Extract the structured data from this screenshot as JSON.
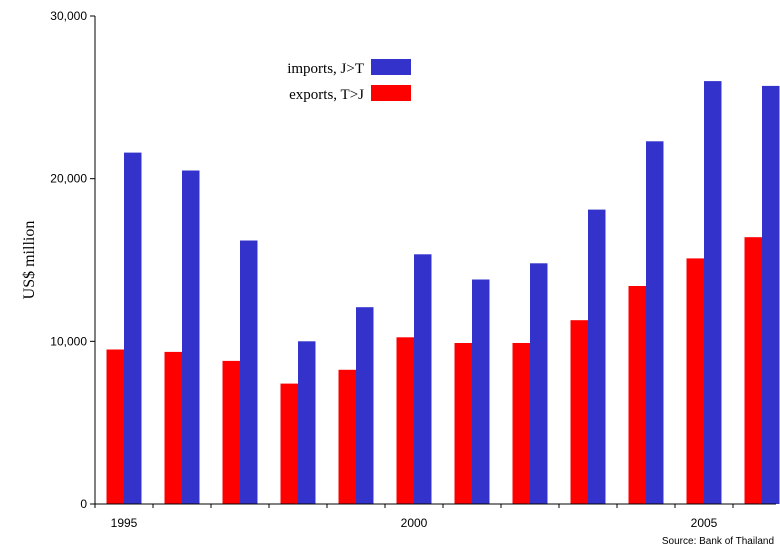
{
  "chart_data": {
    "type": "bar",
    "categories": [
      "1995",
      "1996",
      "1997",
      "1998",
      "1999",
      "2000",
      "2001",
      "2002",
      "2003",
      "2004",
      "2005",
      "2006"
    ],
    "x_tick_labels": [
      "1995",
      "2000",
      "2005"
    ],
    "series": [
      {
        "name": "exports, T>J",
        "color": "#ff0000",
        "values": [
          9500,
          9350,
          8800,
          7400,
          8250,
          10250,
          9900,
          9900,
          11300,
          13400,
          15100,
          16400
        ]
      },
      {
        "name": "imports, J>T",
        "color": "#3333cc",
        "values": [
          21600,
          20500,
          16200,
          10000,
          12100,
          15350,
          13800,
          14800,
          18100,
          22300,
          26000,
          25700
        ]
      }
    ],
    "legend": [
      {
        "name": "imports, J>T",
        "color": "#3333cc"
      },
      {
        "name": "exports, T>J",
        "color": "#ff0000"
      }
    ],
    "legend_placement": "top-left",
    "ylabel": "US$ million",
    "xlabel": "",
    "ylim": [
      0,
      30000
    ],
    "y_ticks": [
      "0",
      "10,000",
      "20,000",
      "30,000"
    ],
    "grid": false,
    "source": "Source: Bank of Thailand"
  }
}
